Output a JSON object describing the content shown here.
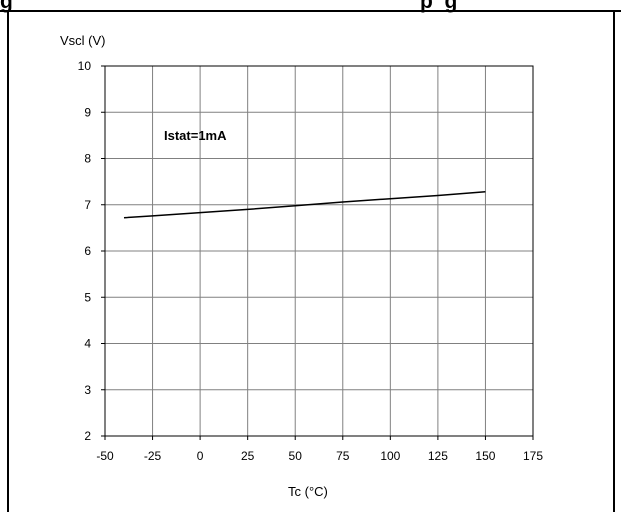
{
  "header": {
    "title_left": "g",
    "title_right": "p  g"
  },
  "chart_data": {
    "type": "line",
    "title": "",
    "ylabel": "Vscl (V)",
    "xlabel": "Tc (°C)",
    "annotation": "Istat=1mA",
    "xlim": [
      -50,
      175
    ],
    "ylim": [
      2,
      10
    ],
    "x_ticks": [
      -50,
      -25,
      0,
      25,
      50,
      75,
      100,
      125,
      150,
      175
    ],
    "y_ticks": [
      2,
      3,
      4,
      5,
      6,
      7,
      8,
      9,
      10
    ],
    "grid": true,
    "series": [
      {
        "x": [
          -40,
          -25,
          0,
          25,
          50,
          75,
          100,
          125,
          150
        ],
        "y": [
          6.72,
          6.76,
          6.83,
          6.9,
          6.98,
          7.06,
          7.13,
          7.2,
          7.28
        ]
      }
    ]
  }
}
